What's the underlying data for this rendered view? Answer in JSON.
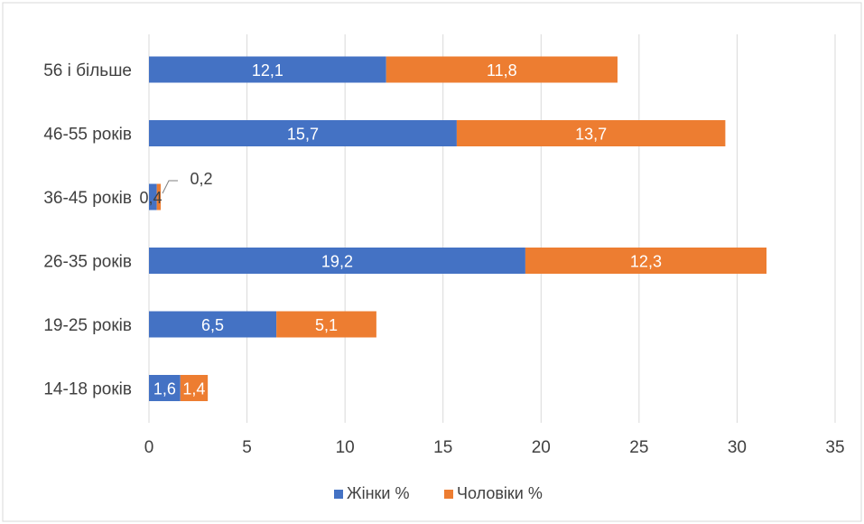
{
  "chart_data": {
    "type": "bar",
    "orientation": "horizontal",
    "stacked": true,
    "categories": [
      "56 і більше",
      "46-55 років",
      "36-45 років",
      "26-35 років",
      "19-25 років",
      "14-18 років"
    ],
    "series": [
      {
        "name": "Жінки %",
        "values": [
          12.1,
          15.7,
          0.4,
          19.2,
          6.5,
          1.6
        ],
        "labels": [
          "12,1",
          "15,7",
          "0,4",
          "19,2",
          "6,5",
          "1,6"
        ]
      },
      {
        "name": "Чоловіки %",
        "values": [
          11.8,
          13.7,
          0.2,
          12.3,
          5.1,
          1.4
        ],
        "labels": [
          "11,8",
          "13,7",
          "0,2",
          "12,3",
          "5,1",
          "1,4"
        ]
      }
    ],
    "xlim": [
      0,
      35
    ],
    "xticks": [
      0,
      5,
      10,
      15,
      20,
      25,
      30,
      35
    ],
    "grid": true,
    "legend": "bottom",
    "colors": [
      "#4472C4",
      "#ED7D31"
    ],
    "title": "",
    "xlabel": "",
    "ylabel": ""
  }
}
